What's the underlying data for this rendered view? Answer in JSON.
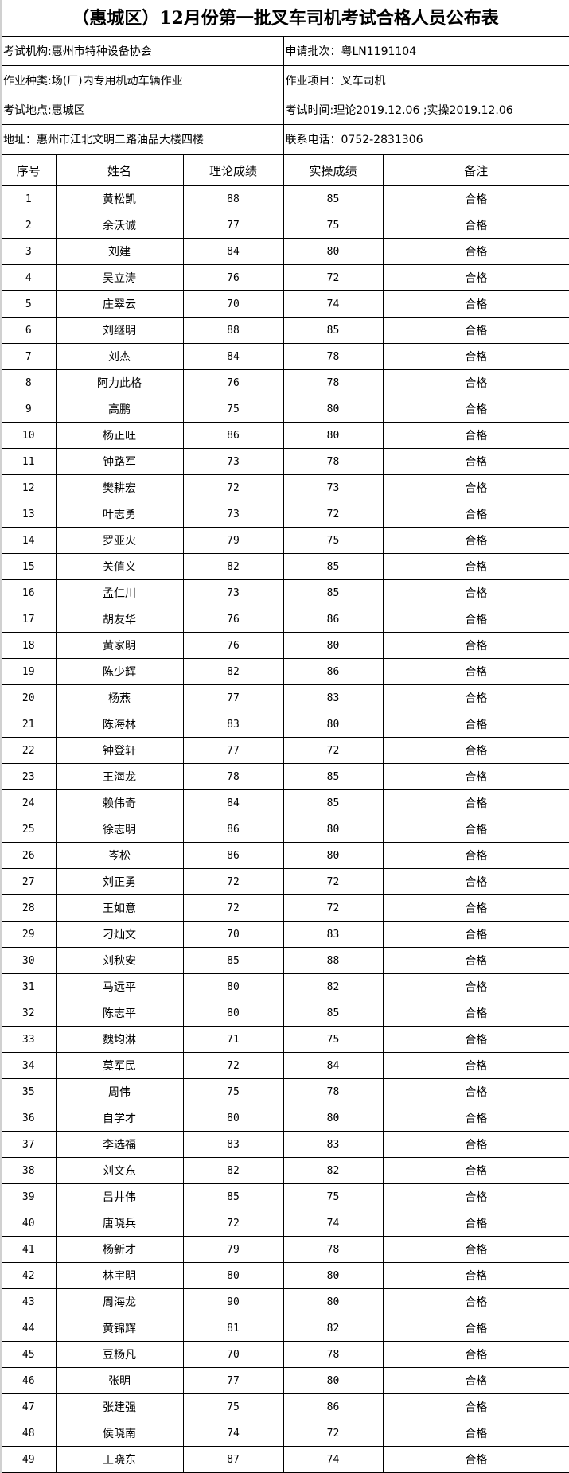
{
  "title": "（惠城区）12月份第一批叉车司机考试合格人员公布表",
  "info": {
    "institution": "考试机构:惠州市特种设备协会",
    "batch": "申请批次：粤LN1191104",
    "work_type": "作业种类:场(厂)内专用机动车辆作业",
    "work_item": "作业项目：叉车司机",
    "location": "考试地点:惠城区",
    "exam_time": "考试时间:理论2019.12.06 ;实操2019.12.06",
    "address": "地址：惠州市江北文明二路油品大楼四楼",
    "phone": "联系电话：0752-2831306"
  },
  "columns": [
    "序号",
    "姓名",
    "理论成绩",
    "实操成绩",
    "备注"
  ],
  "rows": [
    [
      "1",
      "黄松凯",
      "88",
      "85",
      "合格"
    ],
    [
      "2",
      "余沃诚",
      "77",
      "75",
      "合格"
    ],
    [
      "3",
      "刘建",
      "84",
      "80",
      "合格"
    ],
    [
      "4",
      "吴立涛",
      "76",
      "72",
      "合格"
    ],
    [
      "5",
      "庄翠云",
      "70",
      "74",
      "合格"
    ],
    [
      "6",
      "刘继明",
      "88",
      "85",
      "合格"
    ],
    [
      "7",
      "刘杰",
      "84",
      "78",
      "合格"
    ],
    [
      "8",
      "阿力此格",
      "76",
      "78",
      "合格"
    ],
    [
      "9",
      "高鹏",
      "75",
      "80",
      "合格"
    ],
    [
      "10",
      "杨正旺",
      "86",
      "80",
      "合格"
    ],
    [
      "11",
      "钟路军",
      "73",
      "78",
      "合格"
    ],
    [
      "12",
      "樊耕宏",
      "72",
      "73",
      "合格"
    ],
    [
      "13",
      "叶志勇",
      "73",
      "72",
      "合格"
    ],
    [
      "14",
      "罗亚火",
      "79",
      "75",
      "合格"
    ],
    [
      "15",
      "关值义",
      "82",
      "85",
      "合格"
    ],
    [
      "16",
      "孟仁川",
      "73",
      "85",
      "合格"
    ],
    [
      "17",
      "胡友华",
      "76",
      "86",
      "合格"
    ],
    [
      "18",
      "黄家明",
      "76",
      "80",
      "合格"
    ],
    [
      "19",
      "陈少辉",
      "82",
      "86",
      "合格"
    ],
    [
      "20",
      "杨燕",
      "77",
      "83",
      "合格"
    ],
    [
      "21",
      "陈海林",
      "83",
      "80",
      "合格"
    ],
    [
      "22",
      "钟登轩",
      "77",
      "72",
      "合格"
    ],
    [
      "23",
      "王海龙",
      "78",
      "85",
      "合格"
    ],
    [
      "24",
      "赖伟奇",
      "84",
      "85",
      "合格"
    ],
    [
      "25",
      "徐志明",
      "86",
      "80",
      "合格"
    ],
    [
      "26",
      "岑松",
      "86",
      "80",
      "合格"
    ],
    [
      "27",
      "刘正勇",
      "72",
      "72",
      "合格"
    ],
    [
      "28",
      "王如意",
      "72",
      "72",
      "合格"
    ],
    [
      "29",
      "刁灿文",
      "70",
      "83",
      "合格"
    ],
    [
      "30",
      "刘秋安",
      "85",
      "88",
      "合格"
    ],
    [
      "31",
      "马远平",
      "80",
      "82",
      "合格"
    ],
    [
      "32",
      "陈志平",
      "80",
      "85",
      "合格"
    ],
    [
      "33",
      "魏均淋",
      "71",
      "75",
      "合格"
    ],
    [
      "34",
      "莫军民",
      "72",
      "84",
      "合格"
    ],
    [
      "35",
      "周伟",
      "75",
      "78",
      "合格"
    ],
    [
      "36",
      "自学才",
      "80",
      "80",
      "合格"
    ],
    [
      "37",
      "李选福",
      "83",
      "83",
      "合格"
    ],
    [
      "38",
      "刘文东",
      "82",
      "82",
      "合格"
    ],
    [
      "39",
      "吕井伟",
      "85",
      "75",
      "合格"
    ],
    [
      "40",
      "唐晓兵",
      "72",
      "74",
      "合格"
    ],
    [
      "41",
      "杨新才",
      "79",
      "78",
      "合格"
    ],
    [
      "42",
      "林宇明",
      "80",
      "80",
      "合格"
    ],
    [
      "43",
      "周海龙",
      "90",
      "80",
      "合格"
    ],
    [
      "44",
      "黄锦辉",
      "81",
      "82",
      "合格"
    ],
    [
      "45",
      "豆杨凡",
      "70",
      "78",
      "合格"
    ],
    [
      "46",
      "张明",
      "77",
      "80",
      "合格"
    ],
    [
      "47",
      "张建强",
      "75",
      "86",
      "合格"
    ],
    [
      "48",
      "侯晓南",
      "74",
      "72",
      "合格"
    ],
    [
      "49",
      "王晓东",
      "87",
      "74",
      "合格"
    ]
  ]
}
